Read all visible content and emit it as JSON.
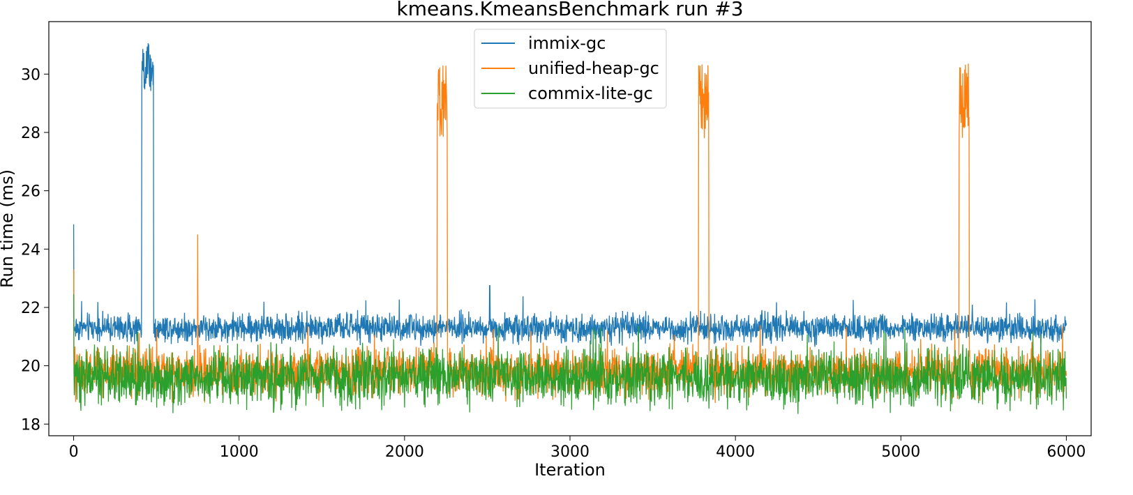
{
  "chart_data": {
    "type": "line",
    "title": "kmeans.KmeansBenchmark run #3",
    "xlabel": "Iteration",
    "ylabel": "Run time (ms)",
    "xlim": [
      -150,
      6150
    ],
    "ylim": [
      17.6,
      31.8
    ],
    "xticks": [
      0,
      1000,
      2000,
      3000,
      4000,
      5000,
      6000
    ],
    "yticks": [
      18,
      20,
      22,
      24,
      26,
      28,
      30
    ],
    "grid": false,
    "legend_position": "upper center",
    "iterations": 6000,
    "series": [
      {
        "name": "immix-gc",
        "color": "#1f77b4",
        "baseline_ms": 21.1,
        "noise_range_ms": [
          20.6,
          22.0
        ],
        "initial_spike_ms": 24.85,
        "spike_segments": [
          {
            "start_iteration": 410,
            "end_iteration": 485,
            "value_range_ms": [
              29.4,
              31.1
            ]
          }
        ],
        "isolated_spikes": [
          {
            "iteration": 2515,
            "value_ms": 22.75
          }
        ]
      },
      {
        "name": "unified-heap-gc",
        "color": "#ff7f0e",
        "baseline_ms": 20.3,
        "noise_range_ms": [
          18.6,
          21.0
        ],
        "initial_spike_ms": 23.3,
        "spike_segments": [
          {
            "start_iteration": 2195,
            "end_iteration": 2260,
            "value_range_ms": [
              27.8,
              30.4
            ]
          },
          {
            "start_iteration": 3775,
            "end_iteration": 3840,
            "value_range_ms": [
              27.8,
              30.4
            ]
          },
          {
            "start_iteration": 5350,
            "end_iteration": 5415,
            "value_range_ms": [
              27.8,
              30.4
            ]
          }
        ],
        "isolated_spikes": [
          {
            "iteration": 750,
            "value_ms": 24.5
          }
        ]
      },
      {
        "name": "commix-lite-gc",
        "color": "#2ca02c",
        "baseline_ms": 19.8,
        "noise_range_ms": [
          18.2,
          21.0
        ],
        "initial_spike_ms": 22.45,
        "spike_segments": [],
        "isolated_spikes": []
      }
    ]
  }
}
